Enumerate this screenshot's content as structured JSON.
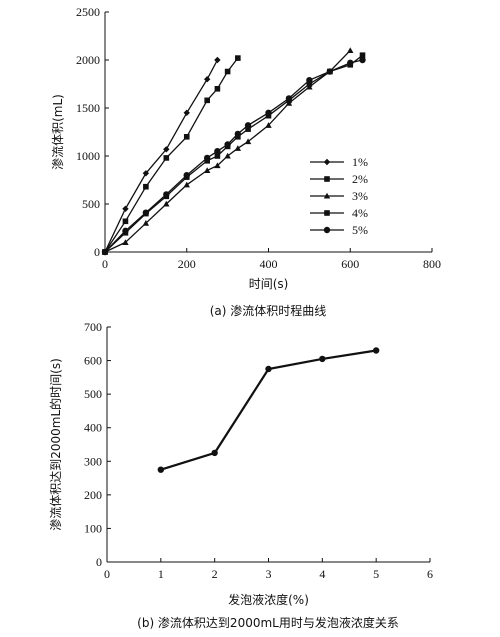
{
  "chart_data": [
    {
      "type": "line",
      "xlabel": "时间(s)",
      "ylabel": "渗流体积(mL)",
      "caption": "(a) 渗流体积时程曲线",
      "xlim": [
        0,
        800
      ],
      "ylim": [
        0,
        2500
      ],
      "xticks": [
        0,
        200,
        400,
        600,
        800
      ],
      "yticks": [
        0,
        500,
        1000,
        1500,
        2000,
        2500
      ],
      "grid": false,
      "legend_position": "center-right",
      "series": [
        {
          "name": "1%",
          "marker": "diamond",
          "points": [
            [
              0,
              0
            ],
            [
              50,
              450
            ],
            [
              100,
              820
            ],
            [
              150,
              1070
            ],
            [
              200,
              1450
            ],
            [
              250,
              1800
            ],
            [
              275,
              2000
            ]
          ]
        },
        {
          "name": "2%",
          "marker": "square",
          "points": [
            [
              0,
              0
            ],
            [
              50,
              320
            ],
            [
              100,
              680
            ],
            [
              150,
              980
            ],
            [
              200,
              1200
            ],
            [
              250,
              1580
            ],
            [
              275,
              1700
            ],
            [
              300,
              1880
            ],
            [
              325,
              2020
            ]
          ]
        },
        {
          "name": "3%",
          "marker": "triangle",
          "points": [
            [
              0,
              0
            ],
            [
              50,
              100
            ],
            [
              100,
              300
            ],
            [
              150,
              500
            ],
            [
              200,
              700
            ],
            [
              250,
              850
            ],
            [
              275,
              900
            ],
            [
              300,
              1000
            ],
            [
              325,
              1080
            ],
            [
              350,
              1150
            ],
            [
              400,
              1320
            ],
            [
              450,
              1550
            ],
            [
              500,
              1720
            ],
            [
              550,
              1880
            ],
            [
              600,
              2100
            ]
          ]
        },
        {
          "name": "4%",
          "marker": "square",
          "points": [
            [
              0,
              0
            ],
            [
              50,
              200
            ],
            [
              100,
              400
            ],
            [
              150,
              580
            ],
            [
              200,
              780
            ],
            [
              250,
              950
            ],
            [
              275,
              1000
            ],
            [
              300,
              1100
            ],
            [
              325,
              1200
            ],
            [
              350,
              1280
            ],
            [
              400,
              1420
            ],
            [
              450,
              1580
            ],
            [
              500,
              1750
            ],
            [
              550,
              1880
            ],
            [
              600,
              1950
            ],
            [
              630,
              2050
            ]
          ]
        },
        {
          "name": "5%",
          "marker": "circle",
          "points": [
            [
              0,
              0
            ],
            [
              50,
              220
            ],
            [
              100,
              410
            ],
            [
              150,
              600
            ],
            [
              200,
              800
            ],
            [
              250,
              980
            ],
            [
              275,
              1050
            ],
            [
              300,
              1120
            ],
            [
              325,
              1230
            ],
            [
              350,
              1320
            ],
            [
              400,
              1450
            ],
            [
              450,
              1600
            ],
            [
              500,
              1790
            ],
            [
              550,
              1880
            ],
            [
              600,
              1970
            ],
            [
              630,
              2000
            ]
          ]
        }
      ]
    },
    {
      "type": "line",
      "xlabel": "发泡液浓度(%)",
      "ylabel": "渗流体积达到2000mL的时间(s)",
      "caption": "(b) 渗流体积达到2000mL用时与发泡液浓度关系",
      "xlim": [
        0,
        6
      ],
      "ylim": [
        0,
        700
      ],
      "xticks": [
        0,
        1,
        2,
        3,
        4,
        5,
        6
      ],
      "yticks": [
        0,
        100,
        200,
        300,
        400,
        500,
        600,
        700
      ],
      "grid": false,
      "series": [
        {
          "marker": "circle",
          "points": [
            [
              1,
              275
            ],
            [
              2,
              325
            ],
            [
              3,
              575
            ],
            [
              4,
              605
            ],
            [
              5,
              630
            ]
          ]
        }
      ]
    }
  ]
}
